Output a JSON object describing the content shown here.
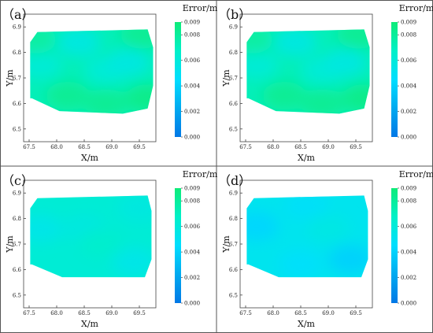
{
  "chart_data": [
    {
      "type": "heatmap",
      "panel_label": "（a）",
      "xlabel": "X/m",
      "ylabel": "Y/m",
      "colorbar_title": "Error/m",
      "xlim": [
        67.4,
        69.8
      ],
      "ylim": [
        6.45,
        6.95
      ],
      "x_ticks": [
        "67.5",
        "68.0",
        "68.5",
        "69.0",
        "69.5"
      ],
      "y_ticks": [
        "6.5",
        "6.6",
        "6.7",
        "6.8",
        "6.9"
      ],
      "colorbar_range": [
        0.0,
        0.009
      ],
      "colorbar_ticks": [
        "0.000",
        "0.002",
        "0.004",
        "0.006",
        "0.008",
        "0.009"
      ],
      "region_outline": [
        [
          67.52,
          6.84
        ],
        [
          67.65,
          6.88
        ],
        [
          69.65,
          6.89
        ],
        [
          69.75,
          6.82
        ],
        [
          69.75,
          6.67
        ],
        [
          69.65,
          6.58
        ],
        [
          69.2,
          6.56
        ],
        [
          68.05,
          6.57
        ],
        [
          67.55,
          6.62
        ],
        [
          67.52,
          6.62
        ]
      ],
      "base_error": 0.0072,
      "error_points": [
        {
          "x": 67.7,
          "y": 6.75,
          "error": 0.0062
        },
        {
          "x": 68.4,
          "y": 6.84,
          "error": 0.0058
        },
        {
          "x": 68.9,
          "y": 6.73,
          "error": 0.0062
        },
        {
          "x": 69.3,
          "y": 6.76,
          "error": 0.0058
        },
        {
          "x": 68.2,
          "y": 6.63,
          "error": 0.0082
        },
        {
          "x": 68.9,
          "y": 6.6,
          "error": 0.0082
        },
        {
          "x": 69.55,
          "y": 6.87,
          "error": 0.0082
        },
        {
          "x": 69.65,
          "y": 6.62,
          "error": 0.0085
        },
        {
          "x": 67.6,
          "y": 6.85,
          "error": 0.0078
        }
      ]
    },
    {
      "type": "heatmap",
      "panel_label": "（b）",
      "xlabel": "X/m",
      "ylabel": "Y/m",
      "colorbar_title": "Error/m",
      "xlim": [
        67.4,
        69.8
      ],
      "ylim": [
        6.45,
        6.95
      ],
      "x_ticks": [
        "67.5",
        "68.0",
        "68.5",
        "69.0",
        "69.5"
      ],
      "y_ticks": [
        "6.5",
        "6.6",
        "6.7",
        "6.8",
        "6.9"
      ],
      "colorbar_range": [
        0.0,
        0.009
      ],
      "colorbar_ticks": [
        "0.000",
        "0.002",
        "0.004",
        "0.006",
        "0.008",
        "0.009"
      ],
      "region_outline": [
        [
          67.52,
          6.84
        ],
        [
          67.65,
          6.88
        ],
        [
          69.65,
          6.89
        ],
        [
          69.75,
          6.82
        ],
        [
          69.75,
          6.67
        ],
        [
          69.65,
          6.58
        ],
        [
          69.2,
          6.56
        ],
        [
          68.05,
          6.57
        ],
        [
          67.55,
          6.62
        ],
        [
          67.52,
          6.62
        ]
      ],
      "base_error": 0.0072,
      "error_points": [
        {
          "x": 67.7,
          "y": 6.75,
          "error": 0.0062
        },
        {
          "x": 68.4,
          "y": 6.84,
          "error": 0.0058
        },
        {
          "x": 68.9,
          "y": 6.73,
          "error": 0.0062
        },
        {
          "x": 69.3,
          "y": 6.76,
          "error": 0.0058
        },
        {
          "x": 68.2,
          "y": 6.63,
          "error": 0.0082
        },
        {
          "x": 68.9,
          "y": 6.6,
          "error": 0.0082
        },
        {
          "x": 69.55,
          "y": 6.87,
          "error": 0.0082
        },
        {
          "x": 69.65,
          "y": 6.62,
          "error": 0.0085
        },
        {
          "x": 67.6,
          "y": 6.85,
          "error": 0.0078
        }
      ]
    },
    {
      "type": "heatmap",
      "panel_label": "（c）",
      "xlabel": "X/m",
      "ylabel": "Y/m",
      "colorbar_title": "Error/m",
      "xlim": [
        67.4,
        69.8
      ],
      "ylim": [
        6.45,
        6.95
      ],
      "x_ticks": [
        "67.5",
        "68.0",
        "68.5",
        "69.0",
        "69.5"
      ],
      "y_ticks": [
        "6.5",
        "6.6",
        "6.7",
        "6.8",
        "6.9"
      ],
      "colorbar_range": [
        0.0,
        0.009
      ],
      "colorbar_ticks": [
        "0.000",
        "0.002",
        "0.004",
        "0.006",
        "0.008",
        "0.009"
      ],
      "region_outline": [
        [
          67.52,
          6.84
        ],
        [
          67.65,
          6.88
        ],
        [
          69.65,
          6.89
        ],
        [
          69.72,
          6.83
        ],
        [
          69.72,
          6.64
        ],
        [
          69.6,
          6.57
        ],
        [
          68.1,
          6.57
        ],
        [
          67.55,
          6.62
        ],
        [
          67.52,
          6.62
        ]
      ],
      "base_error": 0.0062,
      "error_points": [
        {
          "x": 67.7,
          "y": 6.76,
          "error": 0.0055
        },
        {
          "x": 68.5,
          "y": 6.76,
          "error": 0.0058
        },
        {
          "x": 69.4,
          "y": 6.63,
          "error": 0.0055
        },
        {
          "x": 69.5,
          "y": 6.84,
          "error": 0.0058
        },
        {
          "x": 68.8,
          "y": 6.7,
          "error": 0.0065
        }
      ]
    },
    {
      "type": "heatmap",
      "panel_label": "（d）",
      "xlabel": "X/m",
      "ylabel": "Y/m",
      "colorbar_title": "Error/m",
      "xlim": [
        67.4,
        69.8
      ],
      "ylim": [
        6.45,
        6.95
      ],
      "x_ticks": [
        "67.5",
        "68.0",
        "68.5",
        "69.0",
        "69.5"
      ],
      "y_ticks": [
        "6.5",
        "6.6",
        "6.7",
        "6.8",
        "6.9"
      ],
      "colorbar_range": [
        0.0,
        0.009
      ],
      "colorbar_ticks": [
        "0.000",
        "0.002",
        "0.004",
        "0.006",
        "0.008",
        "0.009"
      ],
      "region_outline": [
        [
          67.52,
          6.84
        ],
        [
          67.65,
          6.88
        ],
        [
          69.65,
          6.89
        ],
        [
          69.72,
          6.83
        ],
        [
          69.72,
          6.64
        ],
        [
          69.6,
          6.57
        ],
        [
          68.1,
          6.57
        ],
        [
          67.55,
          6.62
        ],
        [
          67.52,
          6.62
        ]
      ],
      "base_error": 0.0052,
      "error_points": [
        {
          "x": 67.7,
          "y": 6.77,
          "error": 0.0042
        },
        {
          "x": 68.6,
          "y": 6.85,
          "error": 0.0048
        },
        {
          "x": 69.4,
          "y": 6.64,
          "error": 0.004
        },
        {
          "x": 68.5,
          "y": 6.62,
          "error": 0.0047
        },
        {
          "x": 69.0,
          "y": 6.76,
          "error": 0.0056
        }
      ]
    }
  ]
}
